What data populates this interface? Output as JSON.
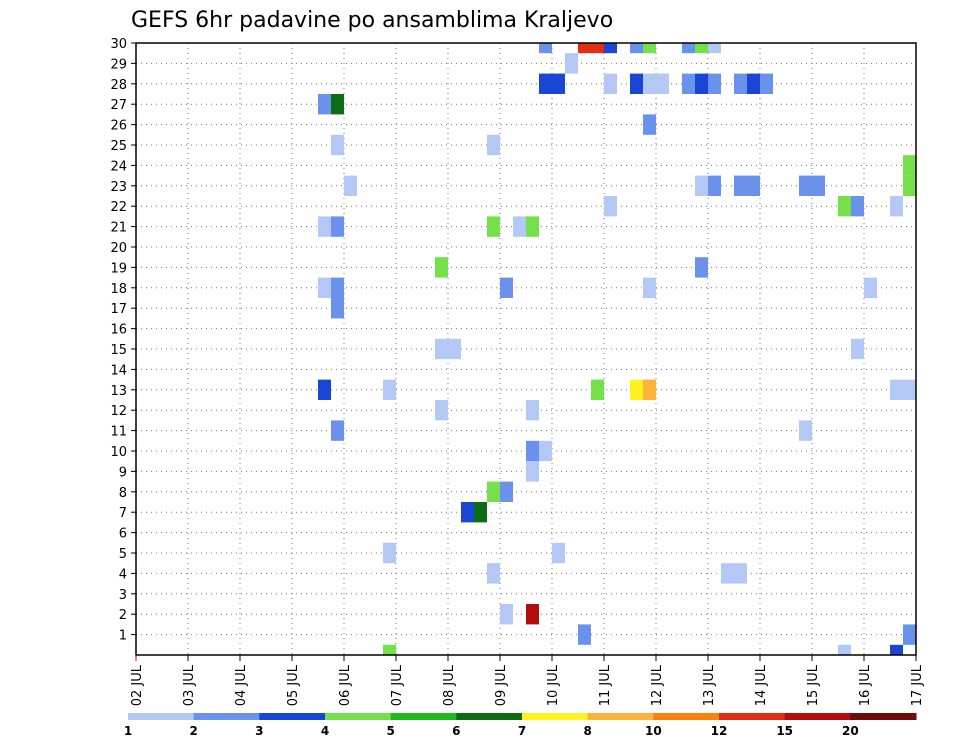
{
  "chart_data": {
    "type": "heatmap",
    "title": "GEFS 6hr padavine po ansamblima Kraljevo",
    "xlabel": "",
    "ylabel": "",
    "x_ticks": [
      "02 JUL",
      "03 JUL",
      "04 JUL",
      "05 JUL",
      "06 JUL",
      "07 JUL",
      "08 JUL",
      "09 JUL",
      "10 JUL",
      "11 JUL",
      "12 JUL",
      "13 JUL",
      "14 JUL",
      "15 JUL",
      "16 JUL",
      "17 JUL"
    ],
    "y_ticks": [
      1,
      2,
      3,
      4,
      5,
      6,
      7,
      8,
      9,
      10,
      11,
      12,
      13,
      14,
      15,
      16,
      17,
      18,
      19,
      20,
      21,
      22,
      23,
      24,
      25,
      26,
      27,
      28,
      29,
      30
    ],
    "x_range_days": [
      2,
      17
    ],
    "y_range": [
      0,
      30
    ],
    "grid": true,
    "step_hours": 6,
    "colorbar": {
      "labels": [
        "1",
        "2",
        "3",
        "4",
        "5",
        "6",
        "7",
        "8",
        "10",
        "12",
        "15",
        "20"
      ],
      "colors": [
        "#b4c8f5",
        "#6a92ed",
        "#1a46d6",
        "#74e14a",
        "#1fb81f",
        "#0c6e14",
        "#fff21e",
        "#fdb33a",
        "#f8820f",
        "#e12e14",
        "#b40d0d",
        "#6e0c0c"
      ]
    },
    "cells": [
      {
        "member": 30,
        "day": 9.75,
        "value": 2.5
      },
      {
        "member": 30,
        "day": 10.5,
        "value": 12
      },
      {
        "member": 30,
        "day": 10.75,
        "value": 12
      },
      {
        "member": 30,
        "day": 11.0,
        "value": 3
      },
      {
        "member": 30,
        "day": 11.5,
        "value": 2
      },
      {
        "member": 30,
        "day": 11.75,
        "value": 4
      },
      {
        "member": 30,
        "day": 12.5,
        "value": 2
      },
      {
        "member": 30,
        "day": 12.75,
        "value": 4
      },
      {
        "member": 30,
        "day": 13.0,
        "value": 1
      },
      {
        "member": 29,
        "day": 10.25,
        "value": 1
      },
      {
        "member": 28,
        "day": 9.75,
        "value": 3
      },
      {
        "member": 28,
        "day": 10.0,
        "value": 3
      },
      {
        "member": 28,
        "day": 11.0,
        "value": 1
      },
      {
        "member": 28,
        "day": 11.5,
        "value": 3
      },
      {
        "member": 28,
        "day": 11.75,
        "value": 1
      },
      {
        "member": 28,
        "day": 12.0,
        "value": 1
      },
      {
        "member": 28,
        "day": 12.5,
        "value": 2
      },
      {
        "member": 28,
        "day": 12.75,
        "value": 3
      },
      {
        "member": 28,
        "day": 13.0,
        "value": 2
      },
      {
        "member": 28,
        "day": 13.5,
        "value": 2
      },
      {
        "member": 28,
        "day": 13.75,
        "value": 3
      },
      {
        "member": 28,
        "day": 14.0,
        "value": 2
      },
      {
        "member": 27,
        "day": 5.5,
        "value": 2
      },
      {
        "member": 27,
        "day": 5.75,
        "value": 6
      },
      {
        "member": 26,
        "day": 11.75,
        "value": 2
      },
      {
        "member": 25,
        "day": 5.75,
        "value": 1
      },
      {
        "member": 25,
        "day": 8.75,
        "value": 1
      },
      {
        "member": 24,
        "day": 16.75,
        "value": 4
      },
      {
        "member": 23,
        "day": 16.75,
        "value": 4
      },
      {
        "member": 23,
        "day": 6.0,
        "value": 1
      },
      {
        "member": 23,
        "day": 12.75,
        "value": 1
      },
      {
        "member": 23,
        "day": 13.0,
        "value": 2
      },
      {
        "member": 23,
        "day": 13.5,
        "value": 2
      },
      {
        "member": 23,
        "day": 13.75,
        "value": 2
      },
      {
        "member": 23,
        "day": 14.75,
        "value": 2
      },
      {
        "member": 23,
        "day": 15.0,
        "value": 2
      },
      {
        "member": 22,
        "day": 11.0,
        "value": 1
      },
      {
        "member": 22,
        "day": 15.5,
        "value": 4
      },
      {
        "member": 22,
        "day": 15.75,
        "value": 2
      },
      {
        "member": 22,
        "day": 16.5,
        "value": 1
      },
      {
        "member": 21,
        "day": 5.5,
        "value": 1
      },
      {
        "member": 21,
        "day": 5.75,
        "value": 2
      },
      {
        "member": 21,
        "day": 8.75,
        "value": 4
      },
      {
        "member": 21,
        "day": 9.25,
        "value": 1
      },
      {
        "member": 21,
        "day": 9.5,
        "value": 4
      },
      {
        "member": 19,
        "day": 7.75,
        "value": 4
      },
      {
        "member": 19,
        "day": 12.75,
        "value": 2
      },
      {
        "member": 18,
        "day": 5.5,
        "value": 1
      },
      {
        "member": 18,
        "day": 5.75,
        "value": 2
      },
      {
        "member": 18,
        "day": 9.0,
        "value": 2
      },
      {
        "member": 18,
        "day": 11.75,
        "value": 1
      },
      {
        "member": 18,
        "day": 16.0,
        "value": 1
      },
      {
        "member": 17,
        "day": 5.75,
        "value": 2
      },
      {
        "member": 15,
        "day": 7.75,
        "value": 1
      },
      {
        "member": 15,
        "day": 8.0,
        "value": 1
      },
      {
        "member": 15,
        "day": 15.75,
        "value": 1
      },
      {
        "member": 13,
        "day": 5.5,
        "value": 3
      },
      {
        "member": 13,
        "day": 6.75,
        "value": 1
      },
      {
        "member": 13,
        "day": 10.75,
        "value": 4
      },
      {
        "member": 13,
        "day": 11.5,
        "value": 7
      },
      {
        "member": 13,
        "day": 11.75,
        "value": 8
      },
      {
        "member": 13,
        "day": 16.5,
        "value": 1
      },
      {
        "member": 13,
        "day": 16.75,
        "value": 1
      },
      {
        "member": 12,
        "day": 7.75,
        "value": 1
      },
      {
        "member": 12,
        "day": 9.5,
        "value": 1
      },
      {
        "member": 11,
        "day": 5.75,
        "value": 2
      },
      {
        "member": 11,
        "day": 14.75,
        "value": 1
      },
      {
        "member": 10,
        "day": 9.5,
        "value": 2
      },
      {
        "member": 10,
        "day": 9.75,
        "value": 1
      },
      {
        "member": 9,
        "day": 9.5,
        "value": 1
      },
      {
        "member": 8,
        "day": 8.75,
        "value": 4
      },
      {
        "member": 8,
        "day": 9.0,
        "value": 2
      },
      {
        "member": 7,
        "day": 8.25,
        "value": 3
      },
      {
        "member": 7,
        "day": 8.5,
        "value": 6
      },
      {
        "member": 5,
        "day": 6.75,
        "value": 1
      },
      {
        "member": 5,
        "day": 10.0,
        "value": 1
      },
      {
        "member": 4,
        "day": 8.75,
        "value": 1
      },
      {
        "member": 4,
        "day": 13.25,
        "value": 1
      },
      {
        "member": 4,
        "day": 13.5,
        "value": 1
      },
      {
        "member": 2,
        "day": 9.0,
        "value": 1
      },
      {
        "member": 2,
        "day": 9.5,
        "value": 15
      },
      {
        "member": 1,
        "day": 10.5,
        "value": 2
      },
      {
        "member": 1,
        "day": 16.75,
        "value": 2
      },
      {
        "member": 0,
        "day": 6.75,
        "value": 4
      },
      {
        "member": 0,
        "day": 15.5,
        "value": 1
      },
      {
        "member": 0,
        "day": 16.5,
        "value": 3
      }
    ]
  }
}
